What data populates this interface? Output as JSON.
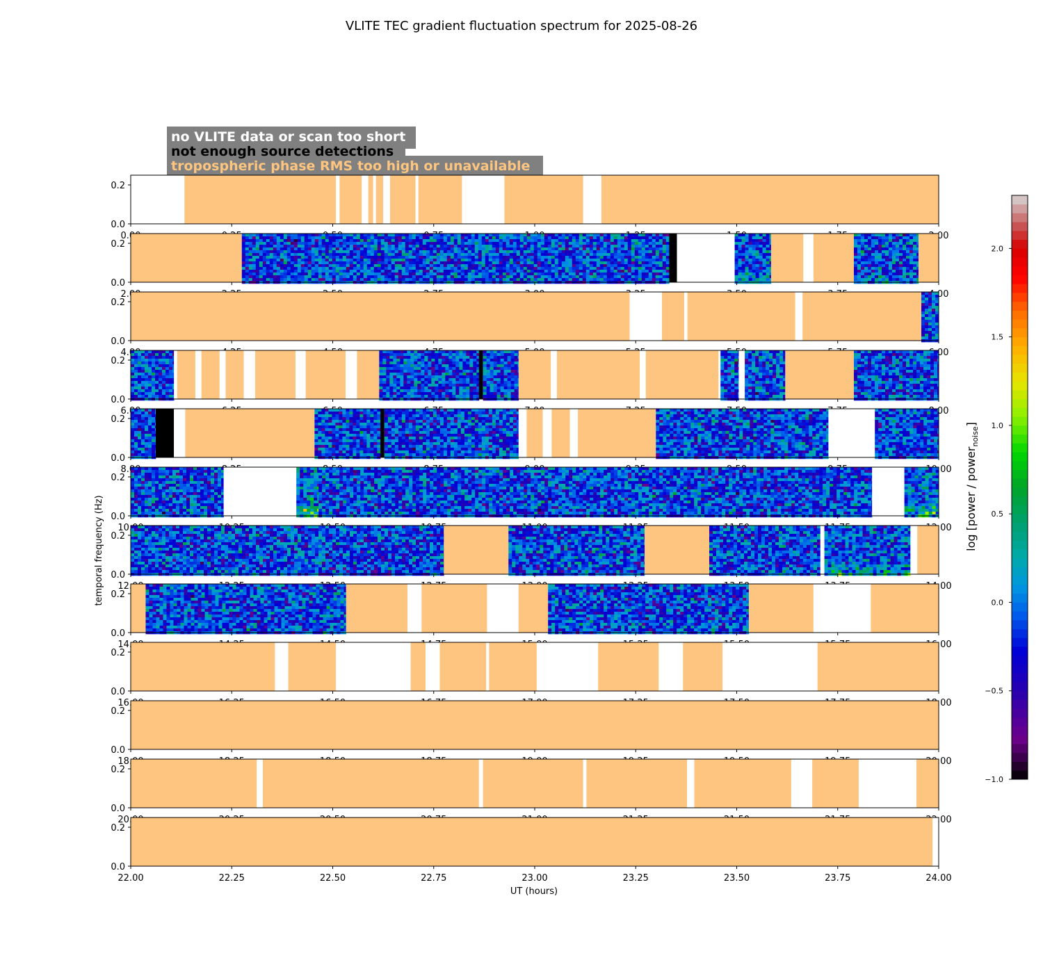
{
  "chart_data": {
    "type": "heatmap",
    "title": "VLITE TEC gradient fluctuation spectrum for 2025-08-26",
    "xlabel": "UT (hours)",
    "ylabel": "temporal frequency (Hz)",
    "ytick_labels": [
      "0.0",
      "0.2"
    ],
    "yrange": [
      0,
      0.25
    ],
    "legend": {
      "items": [
        {
          "label": "no VLITE data or scan too short",
          "text_color": "#ffffff"
        },
        {
          "label": "not enough source detections",
          "text_color": "#000000"
        },
        {
          "label": "tropospheric phase RMS too high or unavailable",
          "text_color": "#fdc57f"
        }
      ]
    },
    "colorbar": {
      "label_main": "log [power / power",
      "label_sub": "noise",
      "label_end": "]",
      "range": [
        -1.0,
        2.3
      ],
      "tick_values": [
        -1.0,
        -0.5,
        0.0,
        0.5,
        1.0,
        1.5,
        2.0
      ],
      "tick_labels": [
        "−1.0",
        "−0.5",
        "0.0",
        "0.5",
        "1.0",
        "1.5",
        "2.0"
      ]
    },
    "colors": {
      "tropo": "#fdc57f",
      "nodata": "#ffffff",
      "nodetect": "#000000",
      "label_box": "#808080"
    },
    "panels": [
      {
        "xmin": 0,
        "xmax": 2,
        "xtick_labels": [
          "0.00",
          "0.25",
          "0.50",
          "0.75",
          "1.00",
          "1.25",
          "1.50",
          "1.75",
          "2.00"
        ],
        "segments": [
          [
            0,
            0.133,
            "w"
          ],
          [
            0.133,
            0.508,
            "o"
          ],
          [
            0.508,
            0.517,
            "w"
          ],
          [
            0.517,
            0.572,
            "o"
          ],
          [
            0.572,
            0.588,
            "w"
          ],
          [
            0.588,
            0.6,
            "o"
          ],
          [
            0.6,
            0.607,
            "w"
          ],
          [
            0.607,
            0.625,
            "o"
          ],
          [
            0.625,
            0.642,
            "w"
          ],
          [
            0.642,
            0.705,
            "o"
          ],
          [
            0.705,
            0.712,
            "w"
          ],
          [
            0.712,
            0.82,
            "o"
          ],
          [
            0.82,
            0.925,
            "w"
          ],
          [
            0.925,
            1.12,
            "o"
          ],
          [
            1.12,
            1.165,
            "w"
          ],
          [
            1.165,
            2,
            "o"
          ]
        ]
      },
      {
        "xmin": 2,
        "xmax": 4,
        "xtick_labels": [
          "2.00",
          "2.25",
          "2.50",
          "2.75",
          "3.00",
          "3.25",
          "3.50",
          "3.75",
          "4.00"
        ],
        "segments": [
          [
            2,
            2.275,
            "o"
          ],
          [
            2.275,
            3.333,
            "s"
          ],
          [
            3.333,
            3.352,
            "k"
          ],
          [
            3.352,
            3.495,
            "w"
          ],
          [
            3.495,
            3.585,
            "s",
            0.25
          ],
          [
            3.585,
            3.665,
            "o"
          ],
          [
            3.665,
            3.69,
            "w"
          ],
          [
            3.69,
            3.79,
            "o"
          ],
          [
            3.79,
            3.95,
            "s",
            0.15
          ],
          [
            3.95,
            4,
            "o"
          ]
        ]
      },
      {
        "xmin": 4,
        "xmax": 6,
        "xtick_labels": [
          "4.00",
          "4.25",
          "4.50",
          "4.75",
          "5.00",
          "5.25",
          "5.50",
          "5.75",
          "6.00"
        ],
        "segments": [
          [
            4,
            5.235,
            "o"
          ],
          [
            5.235,
            5.315,
            "w"
          ],
          [
            5.315,
            5.37,
            "o"
          ],
          [
            5.37,
            5.378,
            "w"
          ],
          [
            5.378,
            5.645,
            "o"
          ],
          [
            5.645,
            5.663,
            "w"
          ],
          [
            5.663,
            5.957,
            "o"
          ],
          [
            5.957,
            6,
            "s"
          ]
        ]
      },
      {
        "xmin": 6,
        "xmax": 8,
        "xtick_labels": [
          "6.00",
          "6.25",
          "6.50",
          "6.75",
          "7.00",
          "7.25",
          "7.50",
          "7.75",
          "8.00"
        ],
        "segments": [
          [
            6,
            6.107,
            "s",
            0.05
          ],
          [
            6.107,
            6.115,
            "w"
          ],
          [
            6.115,
            6.16,
            "o"
          ],
          [
            6.16,
            6.175,
            "w"
          ],
          [
            6.175,
            6.22,
            "o"
          ],
          [
            6.22,
            6.235,
            "w"
          ],
          [
            6.235,
            6.28,
            "o"
          ],
          [
            6.28,
            6.308,
            "w"
          ],
          [
            6.308,
            6.408,
            "o"
          ],
          [
            6.408,
            6.433,
            "w"
          ],
          [
            6.433,
            6.532,
            "o"
          ],
          [
            6.532,
            6.56,
            "w"
          ],
          [
            6.56,
            6.615,
            "o"
          ],
          [
            6.615,
            6.862,
            "s"
          ],
          [
            6.862,
            6.872,
            "k"
          ],
          [
            6.872,
            6.96,
            "s"
          ],
          [
            6.96,
            7.04,
            "o"
          ],
          [
            7.04,
            7.055,
            "w"
          ],
          [
            7.055,
            7.26,
            "o"
          ],
          [
            7.26,
            7.275,
            "w"
          ],
          [
            7.275,
            7.455,
            "o"
          ],
          [
            7.455,
            7.46,
            "w"
          ],
          [
            7.46,
            7.505,
            "s"
          ],
          [
            7.505,
            7.52,
            "w"
          ],
          [
            7.52,
            7.62,
            "s"
          ],
          [
            7.62,
            7.79,
            "o"
          ],
          [
            7.79,
            8,
            "s"
          ]
        ]
      },
      {
        "xmin": 8,
        "xmax": 10,
        "xtick_labels": [
          "8.00",
          "8.25",
          "8.50",
          "8.75",
          "9.00",
          "9.25",
          "9.50",
          "9.75",
          "10.00"
        ],
        "segments": [
          [
            8,
            8.062,
            "s"
          ],
          [
            8.062,
            8.107,
            "k"
          ],
          [
            8.107,
            8.135,
            "w"
          ],
          [
            8.135,
            8.455,
            "o"
          ],
          [
            8.455,
            8.618,
            "s"
          ],
          [
            8.618,
            8.628,
            "k"
          ],
          [
            8.628,
            8.96,
            "s"
          ],
          [
            8.96,
            8.98,
            "w"
          ],
          [
            8.98,
            9.02,
            "o"
          ],
          [
            9.02,
            9.042,
            "w"
          ],
          [
            9.042,
            9.087,
            "o"
          ],
          [
            9.087,
            9.107,
            "w"
          ],
          [
            9.107,
            9.3,
            "o"
          ],
          [
            9.3,
            9.727,
            "s"
          ],
          [
            9.727,
            9.842,
            "w"
          ],
          [
            9.842,
            10,
            "s"
          ]
        ]
      },
      {
        "xmin": 10,
        "xmax": 12,
        "xtick_labels": [
          "10.00",
          "10.25",
          "10.50",
          "10.75",
          "11.00",
          "11.25",
          "11.50",
          "11.75",
          "12.00"
        ],
        "segments": [
          [
            10,
            10.23,
            "s"
          ],
          [
            10.23,
            10.41,
            "w"
          ],
          [
            10.41,
            10.465,
            "s",
            0.85
          ],
          [
            10.465,
            11.835,
            "s"
          ],
          [
            11.835,
            11.915,
            "w"
          ],
          [
            11.915,
            12,
            "s",
            0.6
          ]
        ]
      },
      {
        "xmin": 12,
        "xmax": 14,
        "xtick_labels": [
          "12.00",
          "12.25",
          "12.50",
          "12.75",
          "13.00",
          "13.25",
          "13.50",
          "13.75",
          "14.00"
        ],
        "segments": [
          [
            12,
            12.775,
            "s"
          ],
          [
            12.775,
            12.935,
            "o"
          ],
          [
            12.935,
            13.272,
            "s"
          ],
          [
            13.272,
            13.432,
            "o"
          ],
          [
            13.432,
            13.707,
            "s"
          ],
          [
            13.707,
            13.717,
            "w"
          ],
          [
            13.717,
            13.93,
            "s",
            0.35
          ],
          [
            13.93,
            13.947,
            "w"
          ],
          [
            13.947,
            14,
            "o"
          ]
        ]
      },
      {
        "xmin": 14,
        "xmax": 16,
        "xtick_labels": [
          "14.00",
          "14.25",
          "14.50",
          "14.75",
          "15.00",
          "15.25",
          "15.50",
          "15.75",
          "16.00"
        ],
        "segments": [
          [
            14,
            14.037,
            "o"
          ],
          [
            14.037,
            14.533,
            "s"
          ],
          [
            14.533,
            14.685,
            "o"
          ],
          [
            14.685,
            14.72,
            "w"
          ],
          [
            14.72,
            14.882,
            "o"
          ],
          [
            14.882,
            14.96,
            "w"
          ],
          [
            14.96,
            15.033,
            "o"
          ],
          [
            15.033,
            15.53,
            "s"
          ],
          [
            15.53,
            15.69,
            "o"
          ],
          [
            15.69,
            15.832,
            "w"
          ],
          [
            15.832,
            16,
            "o"
          ]
        ]
      },
      {
        "xmin": 16,
        "xmax": 18,
        "xtick_labels": [
          "16.00",
          "16.25",
          "16.50",
          "16.75",
          "17.00",
          "17.25",
          "17.50",
          "17.75",
          "18.00"
        ],
        "segments": [
          [
            16,
            16.357,
            "o"
          ],
          [
            16.357,
            16.39,
            "w"
          ],
          [
            16.39,
            16.508,
            "o"
          ],
          [
            16.508,
            16.693,
            "w"
          ],
          [
            16.693,
            16.73,
            "o"
          ],
          [
            16.73,
            16.765,
            "w"
          ],
          [
            16.765,
            16.88,
            "o"
          ],
          [
            16.88,
            16.887,
            "w"
          ],
          [
            16.887,
            17.005,
            "o"
          ],
          [
            17.005,
            17.157,
            "w"
          ],
          [
            17.157,
            17.307,
            "o"
          ],
          [
            17.307,
            17.367,
            "w"
          ],
          [
            17.367,
            17.465,
            "o"
          ],
          [
            17.465,
            17.7,
            "w"
          ],
          [
            17.7,
            18,
            "o"
          ]
        ]
      },
      {
        "xmin": 18,
        "xmax": 20,
        "xtick_labels": [
          "18.00",
          "18.25",
          "18.50",
          "18.75",
          "19.00",
          "19.25",
          "19.50",
          "19.75",
          "20.00"
        ],
        "segments": [
          [
            18,
            20,
            "o"
          ]
        ]
      },
      {
        "xmin": 20,
        "xmax": 22,
        "xtick_labels": [
          "20.00",
          "20.25",
          "20.50",
          "20.75",
          "21.00",
          "21.25",
          "21.50",
          "21.75",
          "22.00"
        ],
        "segments": [
          [
            20,
            20.312,
            "o"
          ],
          [
            20.312,
            20.327,
            "w"
          ],
          [
            20.327,
            20.862,
            "o"
          ],
          [
            20.862,
            20.872,
            "w"
          ],
          [
            20.872,
            21.12,
            "o"
          ],
          [
            21.12,
            21.128,
            "w"
          ],
          [
            21.128,
            21.377,
            "o"
          ],
          [
            21.377,
            21.395,
            "w"
          ],
          [
            21.395,
            21.635,
            "o"
          ],
          [
            21.635,
            21.687,
            "w"
          ],
          [
            21.687,
            21.802,
            "o"
          ],
          [
            21.802,
            21.945,
            "w"
          ],
          [
            21.945,
            22,
            "o"
          ]
        ]
      },
      {
        "xmin": 22,
        "xmax": 24,
        "xtick_labels": [
          "22.00",
          "22.25",
          "22.50",
          "22.75",
          "23.00",
          "23.25",
          "23.50",
          "23.75",
          "24.00"
        ],
        "segments": [
          [
            22,
            23.985,
            "o"
          ],
          [
            23.985,
            24,
            "w"
          ]
        ]
      }
    ]
  }
}
